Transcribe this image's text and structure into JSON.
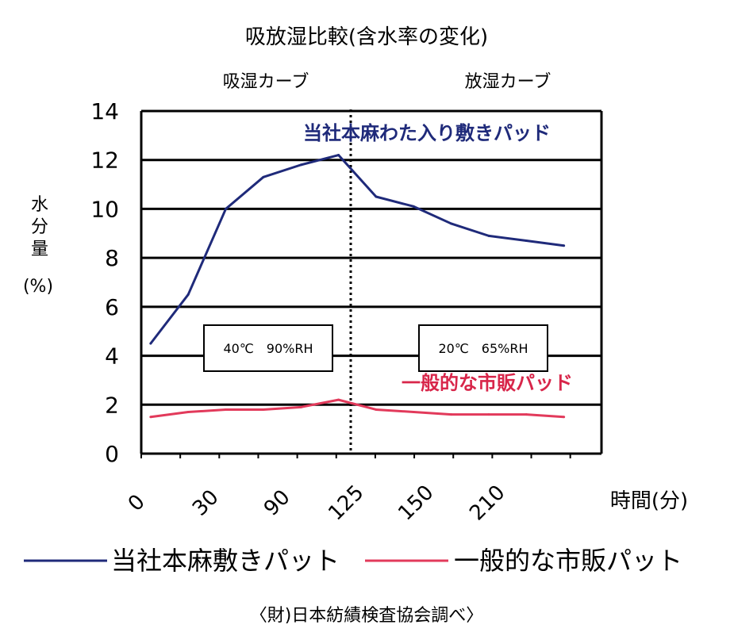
{
  "chart_data": {
    "type": "line",
    "title": "吸放湿比較(含水率の変化)",
    "phase_labels": {
      "absorb": "吸湿カーブ",
      "release": "放湿カーブ"
    },
    "ylabel": "水分量",
    "ylabel_unit": "(%)",
    "xlabel": "時間(分)",
    "ylim": [
      0,
      14
    ],
    "yticks": [
      "0",
      "2",
      "4",
      "6",
      "8",
      "10",
      "12",
      "14"
    ],
    "xtick_labels": [
      "0",
      "30",
      "90",
      "125",
      "150",
      "210"
    ],
    "grid": true,
    "x": [
      5,
      25,
      45,
      65,
      85,
      105,
      125,
      145,
      165,
      185,
      205,
      225
    ],
    "series": [
      {
        "name": "当社本麻敷きパット",
        "color": "#1f2a7a",
        "values": [
          4.5,
          6.5,
          10.0,
          11.3,
          11.8,
          12.2,
          10.5,
          10.1,
          9.4,
          8.9,
          8.7,
          8.5
        ]
      },
      {
        "name": "一般的な市販パット",
        "color": "#e23a5b",
        "values": [
          1.5,
          1.7,
          1.8,
          1.8,
          1.9,
          2.2,
          1.8,
          1.7,
          1.6,
          1.6,
          1.6,
          1.5
        ]
      }
    ],
    "annotations": {
      "series1_label": "当社本麻わた入り敷きパッド",
      "series2_label": "一般的な市販パッド",
      "cond_absorb": "40℃　90%RH",
      "cond_release": "20℃　65%RH"
    },
    "legend": [
      "当社本麻敷きパット",
      "一般的な市販パット"
    ],
    "legend_position": "bottom",
    "source": "〈財)日本紡績検査協会調べ〉"
  }
}
